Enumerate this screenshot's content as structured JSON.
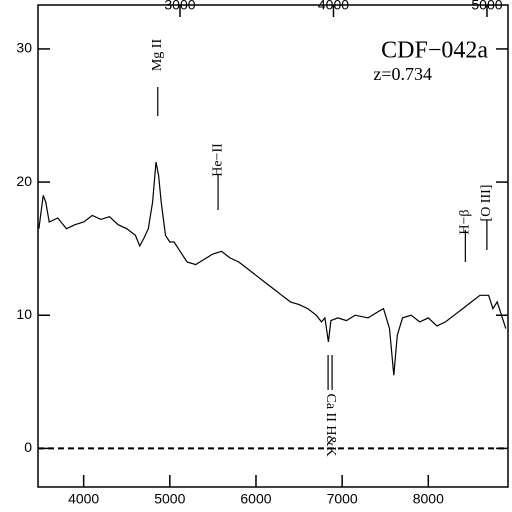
{
  "chart_data": {
    "type": "line",
    "title": "CDF−042a",
    "subtitle": "z=0.734",
    "x": [
      3480,
      3530,
      3560,
      3600,
      3700,
      3800,
      3900,
      4000,
      4100,
      4200,
      4300,
      4400,
      4500,
      4600,
      4650,
      4700,
      4750,
      4800,
      4840,
      4870,
      4900,
      4950,
      5000,
      5050,
      5100,
      5150,
      5200,
      5300,
      5400,
      5500,
      5600,
      5700,
      5800,
      5900,
      6000,
      6100,
      6200,
      6300,
      6400,
      6500,
      6600,
      6700,
      6760,
      6800,
      6840,
      6870,
      6950,
      7050,
      7150,
      7300,
      7400,
      7480,
      7550,
      7600,
      7640,
      7700,
      7800,
      7900,
      8000,
      8100,
      8200,
      8300,
      8400,
      8500,
      8600,
      8700,
      8750,
      8800,
      8850,
      8900
    ],
    "series": [
      {
        "color": "#000000",
        "values": [
          16.5,
          19.0,
          18.5,
          17.0,
          17.3,
          16.5,
          16.8,
          17.0,
          17.5,
          17.2,
          17.4,
          16.8,
          16.5,
          16.0,
          15.2,
          15.8,
          16.5,
          18.5,
          21.5,
          20.5,
          18.5,
          16.0,
          15.5,
          15.5,
          15.0,
          14.5,
          14.0,
          13.8,
          14.2,
          14.6,
          14.8,
          14.3,
          14.0,
          13.5,
          13.0,
          12.5,
          12.0,
          11.5,
          11.0,
          10.8,
          10.5,
          10.0,
          9.5,
          9.8,
          8.0,
          9.6,
          9.8,
          9.6,
          10.0,
          9.8,
          10.2,
          10.5,
          9.0,
          5.5,
          8.5,
          9.8,
          10.0,
          9.5,
          9.8,
          9.2,
          9.5,
          10.0,
          10.5,
          11.0,
          11.5,
          11.5,
          10.5,
          11.0,
          10.0,
          9.0
        ]
      }
    ],
    "xlim": [
      3470,
      8925
    ],
    "xticks": [
      4000,
      5000,
      6000,
      7000,
      8000
    ],
    "x2lim": [
      2075,
      5137
    ],
    "x2ticks": [
      3000,
      4000,
      5000
    ],
    "ylim": [
      -2.9,
      33.3
    ],
    "yticks": [
      0,
      10,
      20,
      30
    ],
    "reference_line": 0,
    "lines": [
      {
        "label": "Mg II",
        "x": 4860
      },
      {
        "label": "He−II",
        "x": 5560
      },
      {
        "label": "Ca II H&K",
        "x": 6860
      },
      {
        "label": "H−β",
        "x": 8430
      },
      {
        "label": "[O III]",
        "x": 8680
      }
    ]
  }
}
